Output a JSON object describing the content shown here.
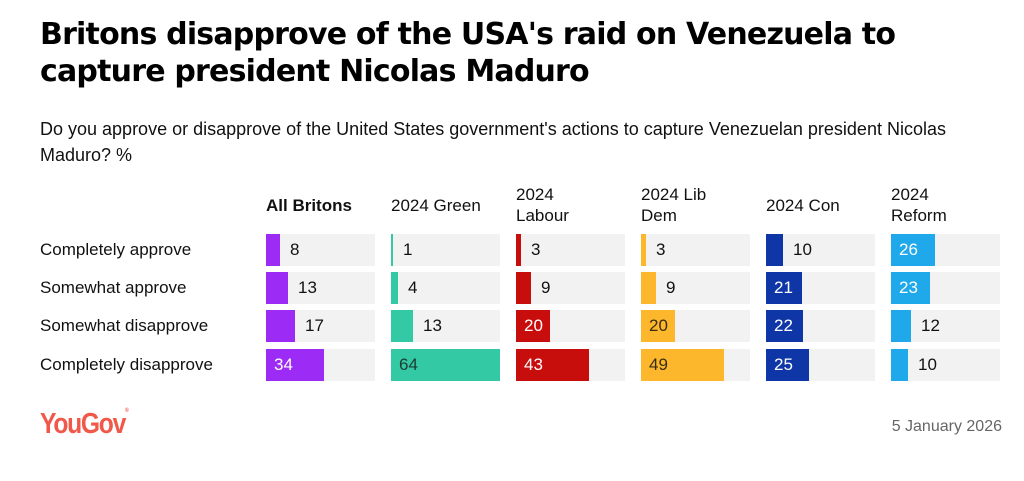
{
  "chart_data": {
    "type": "bar",
    "orientation": "horizontal",
    "title": "Britons disapprove of the USA's raid on Venezuela to capture president Nicolas Maduro",
    "subtitle": "Do you approve or disapprove of the United States government's actions to capture Venezuelan president Nicolas Maduro? %",
    "categories": [
      "Completely approve",
      "Somewhat approve",
      "Somewhat disapprove",
      "Completely disapprove"
    ],
    "xlim": [
      0,
      64
    ],
    "series": [
      {
        "name": "All Britons",
        "bold": true,
        "color": "#9b2bf5",
        "label_on_bar_color": "#ffffff",
        "values": [
          8,
          13,
          17,
          34
        ]
      },
      {
        "name": "2024 Green",
        "bold": false,
        "color": "#34c9a5",
        "label_on_bar_color": "#1d3b34",
        "values": [
          1,
          4,
          13,
          64
        ]
      },
      {
        "name": "2024 Labour",
        "bold": false,
        "color": "#c80d0d",
        "label_on_bar_color": "#ffffff",
        "values": [
          3,
          9,
          20,
          43
        ]
      },
      {
        "name": "2024 Lib Dem",
        "bold": false,
        "color": "#fcb72c",
        "label_on_bar_color": "#3a2e10",
        "values": [
          3,
          9,
          20,
          49
        ]
      },
      {
        "name": "2024 Con",
        "bold": false,
        "color": "#0f36a6",
        "label_on_bar_color": "#ffffff",
        "values": [
          10,
          21,
          22,
          25
        ]
      },
      {
        "name": "2024 Reform",
        "bold": false,
        "color": "#1fa9ea",
        "label_on_bar_color": "#ffffff",
        "values": [
          26,
          23,
          12,
          10
        ]
      }
    ]
  },
  "footer": {
    "brand": "YouGov",
    "date": "5 January 2026"
  }
}
